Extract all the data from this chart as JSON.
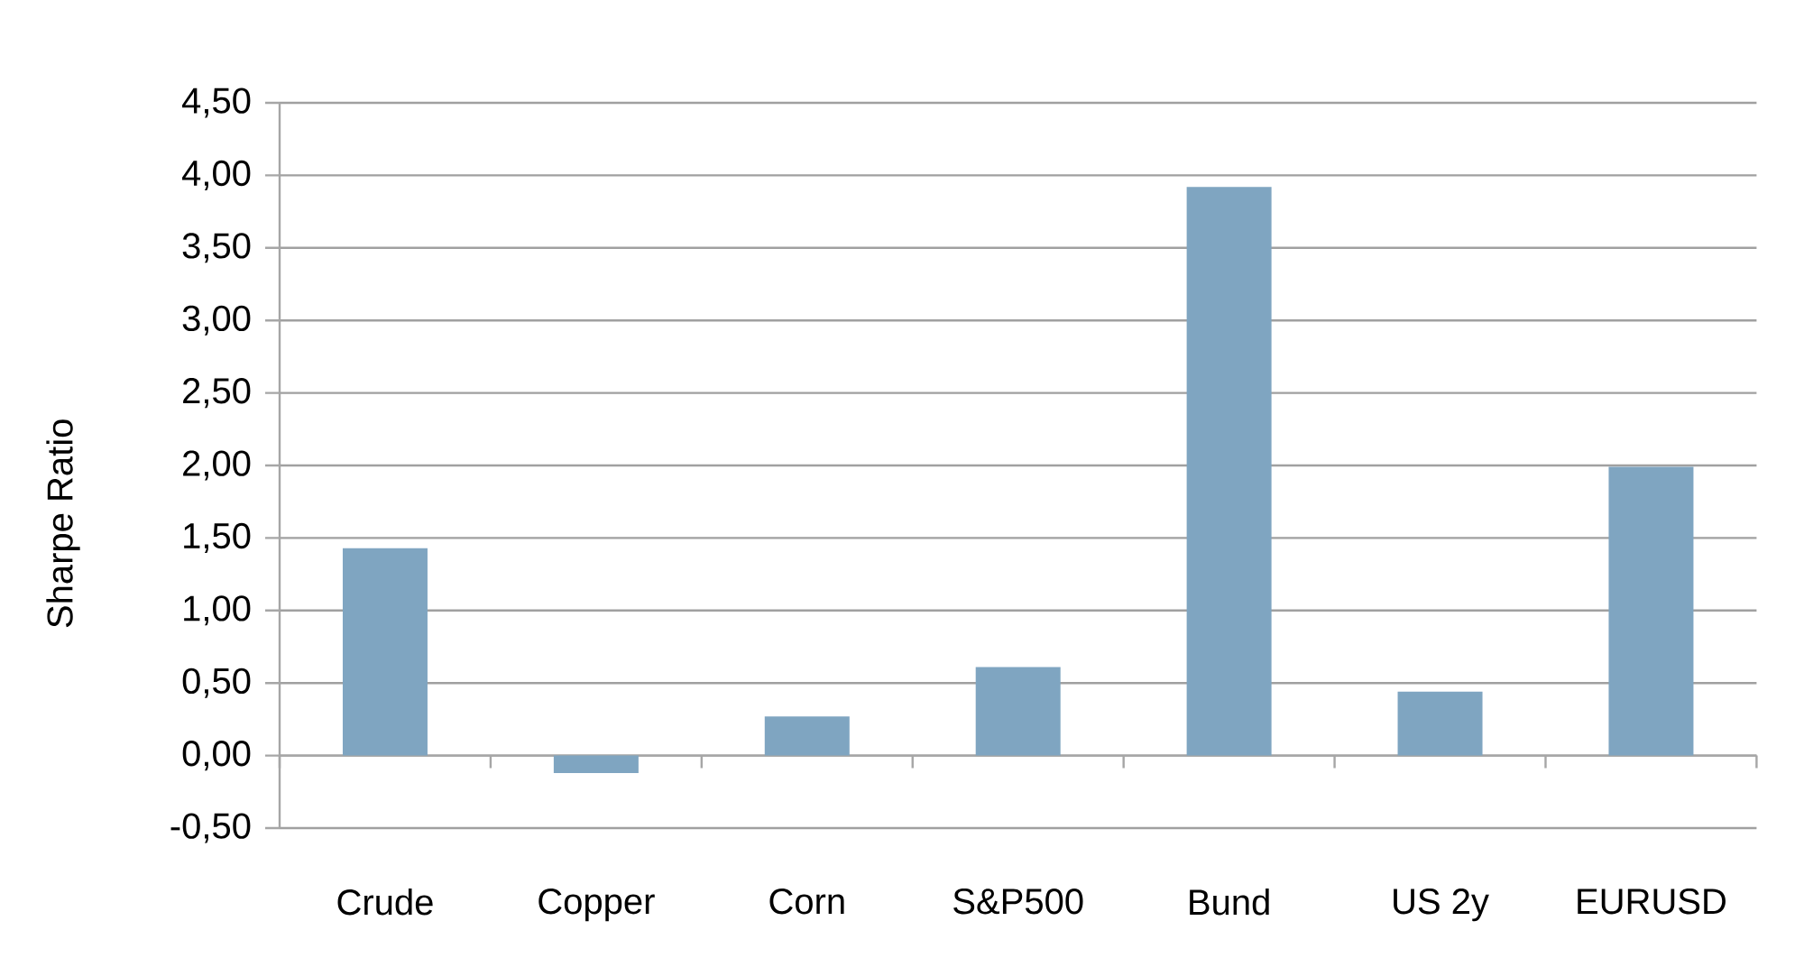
{
  "chart_data": {
    "type": "bar",
    "ylabel": "Sharpe Ratio",
    "categories": [
      "Crude",
      "Copper",
      "Corn",
      "S&P500",
      "Bund",
      "US 2y",
      "EURUSD"
    ],
    "values": [
      1.43,
      -0.12,
      0.27,
      0.61,
      3.92,
      0.44,
      1.99
    ],
    "color": "#7fa5c1",
    "ylim": [
      -0.5,
      4.5
    ],
    "yticks": [
      {
        "value": -0.5,
        "label": "-0,50"
      },
      {
        "value": 0,
        "label": "0,00"
      },
      {
        "value": 0.5,
        "label": "0,50"
      },
      {
        "value": 1,
        "label": "1,00"
      },
      {
        "value": 1.5,
        "label": "1,50"
      },
      {
        "value": 2,
        "label": "2,00"
      },
      {
        "value": 2.5,
        "label": "2,50"
      },
      {
        "value": 3,
        "label": "3,00"
      },
      {
        "value": 3.5,
        "label": "3,50"
      },
      {
        "value": 4,
        "label": "4,00"
      },
      {
        "value": 4.5,
        "label": "4,50"
      }
    ],
    "grid": "y"
  }
}
